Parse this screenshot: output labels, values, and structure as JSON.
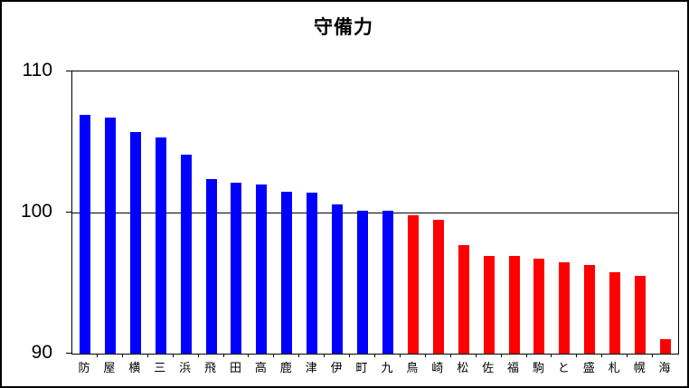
{
  "chart_data": {
    "type": "bar",
    "title": "守備力",
    "categories": [
      "防",
      "屋",
      "横",
      "三",
      "浜",
      "飛",
      "田",
      "高",
      "鹿",
      "津",
      "伊",
      "町",
      "九",
      "鳥",
      "崎",
      "松",
      "佐",
      "福",
      "駒",
      "と",
      "盛",
      "札",
      "幌",
      "海"
    ],
    "values": [
      106.9,
      106.7,
      105.7,
      105.3,
      104.1,
      102.4,
      102.1,
      102.0,
      101.5,
      101.4,
      100.6,
      100.1,
      100.1,
      99.8,
      99.5,
      97.7,
      96.9,
      96.9,
      96.7,
      96.5,
      96.3,
      95.8,
      95.5,
      91.0
    ],
    "bar_colors": [
      "#0000ff",
      "#0000ff",
      "#0000ff",
      "#0000ff",
      "#0000ff",
      "#0000ff",
      "#0000ff",
      "#0000ff",
      "#0000ff",
      "#0000ff",
      "#0000ff",
      "#0000ff",
      "#0000ff",
      "#ff0000",
      "#ff0000",
      "#ff0000",
      "#ff0000",
      "#ff0000",
      "#ff0000",
      "#ff0000",
      "#ff0000",
      "#ff0000",
      "#ff0000",
      "#ff0000"
    ],
    "xlabel": "",
    "ylabel": "",
    "ylim": [
      90,
      110
    ],
    "yticks": [
      110,
      100,
      90
    ],
    "ytick_labels": [
      "110",
      "100",
      "90"
    ],
    "gridline_value": 100,
    "legend": "none",
    "grid": "single horizontal line at 100",
    "plot_border": true
  },
  "colors": {
    "blue_series": "#0000ff",
    "red_series": "#ff0000",
    "axis": "#000000",
    "background": "#ffffff"
  }
}
